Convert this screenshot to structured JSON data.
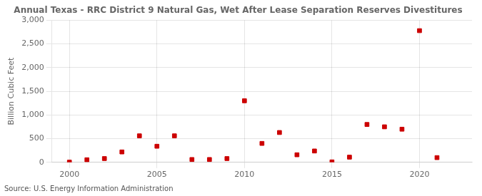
{
  "chart_data": {
    "type": "scatter",
    "title": "Annual Texas - RRC District 9 Natural Gas, Wet After Lease Separation Reserves Divestitures",
    "y_label": "Billion Cubic Feet",
    "annotations": [
      "Source: U.S. Energy Information Administration"
    ],
    "x": [
      2000,
      2001,
      2002,
      2003,
      2004,
      2005,
      2006,
      2007,
      2008,
      2009,
      2010,
      2011,
      2012,
      2013,
      2014,
      2015,
      2016,
      2017,
      2018,
      2019,
      2020,
      2021
    ],
    "values": [
      5,
      55,
      80,
      220,
      560,
      340,
      560,
      60,
      60,
      80,
      1300,
      400,
      630,
      160,
      240,
      10,
      110,
      800,
      750,
      700,
      2780,
      100
    ],
    "color": "#cc0000",
    "marker": "square",
    "xlim": [
      1999,
      2023
    ],
    "xticks": [
      2000,
      2005,
      2010,
      2015,
      2020
    ],
    "ylim": [
      0,
      3000
    ],
    "yticks": [
      0,
      500,
      {
        "value": 1000,
        "label": "1,000"
      },
      {
        "value": 1500,
        "label": "1,500"
      },
      {
        "value": 2000,
        "label": "2,000"
      },
      {
        "value": 2500,
        "label": "2,500"
      },
      {
        "value": 3000,
        "label": "3,000"
      }
    ],
    "grid": true
  }
}
